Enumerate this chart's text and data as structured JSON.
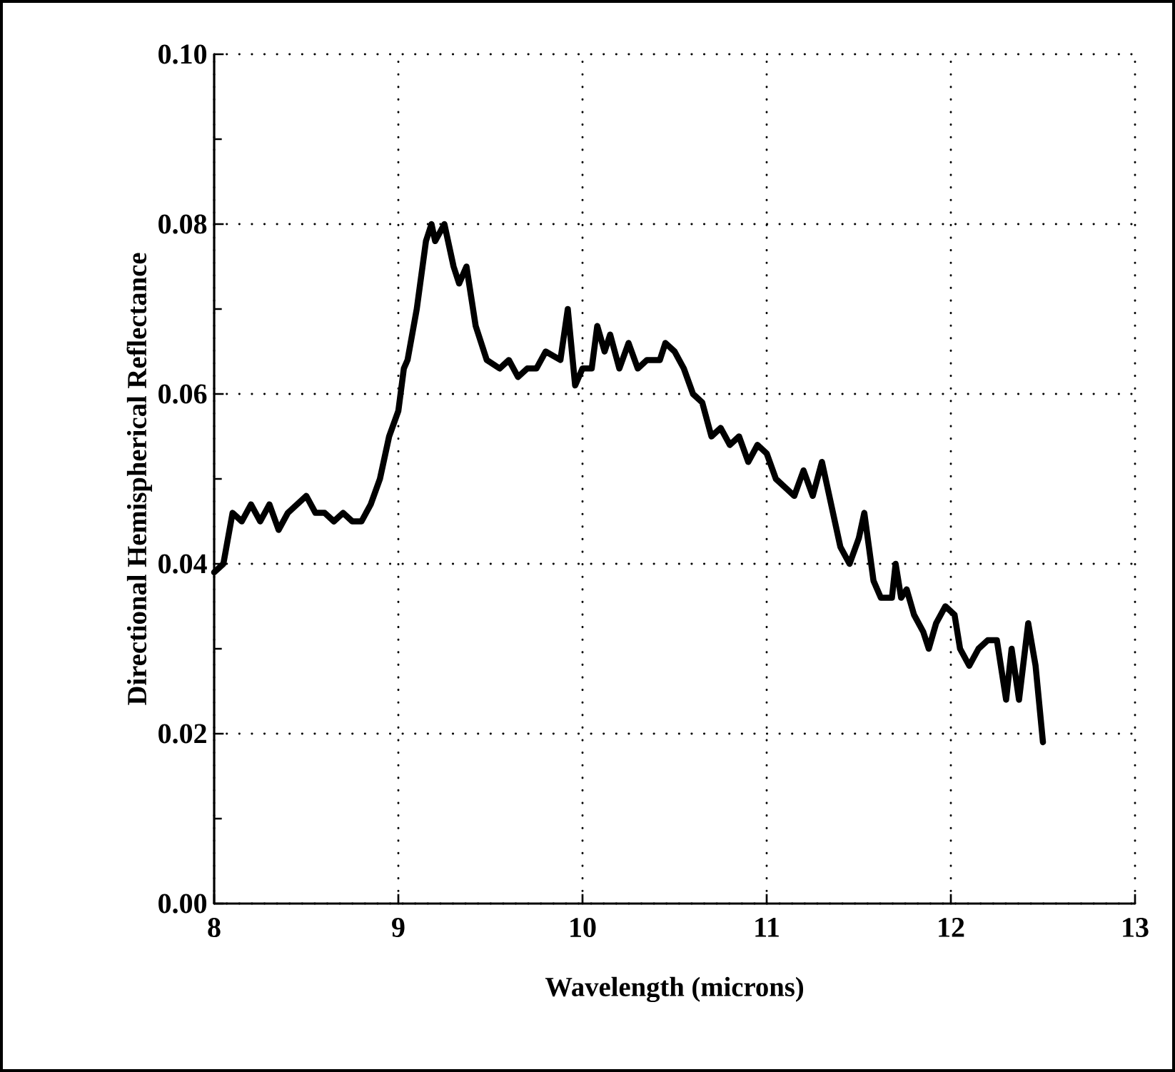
{
  "chart_data": {
    "type": "line",
    "xlabel": "Wavelength (microns)",
    "ylabel": "Directional Hemispherical Reflectance",
    "xlim": [
      8,
      13
    ],
    "xticks": [
      8,
      9,
      10,
      11,
      12,
      13
    ],
    "ylim": [
      0,
      0.1
    ],
    "yticks": [
      {
        "value": 0,
        "label": "0.00"
      },
      {
        "value": 0.02,
        "label": "0.02"
      },
      {
        "value": 0.04,
        "label": "0.04"
      },
      {
        "value": 0.06,
        "label": "0.06"
      },
      {
        "value": 0.08,
        "label": "0.08"
      },
      {
        "value": 0.1,
        "label": "0.10"
      }
    ],
    "grid": true,
    "marker": "none",
    "line_style": "solid",
    "series": [
      {
        "color": "#000000",
        "x": [
          8.0,
          8.05,
          8.1,
          8.15,
          8.2,
          8.25,
          8.3,
          8.35,
          8.4,
          8.5,
          8.55,
          8.6,
          8.65,
          8.7,
          8.75,
          8.8,
          8.85,
          8.9,
          8.95,
          9.0,
          9.03,
          9.05,
          9.1,
          9.15,
          9.18,
          9.2,
          9.25,
          9.3,
          9.33,
          9.37,
          9.42,
          9.48,
          9.55,
          9.6,
          9.65,
          9.7,
          9.75,
          9.8,
          9.88,
          9.92,
          9.96,
          10.0,
          10.05,
          10.08,
          10.12,
          10.15,
          10.2,
          10.25,
          10.3,
          10.35,
          10.42,
          10.45,
          10.5,
          10.55,
          10.6,
          10.65,
          10.7,
          10.75,
          10.8,
          10.85,
          10.9,
          10.95,
          11.0,
          11.05,
          11.1,
          11.15,
          11.2,
          11.25,
          11.3,
          11.35,
          11.4,
          11.45,
          11.5,
          11.53,
          11.58,
          11.62,
          11.68,
          11.7,
          11.73,
          11.76,
          11.8,
          11.85,
          11.88,
          11.92,
          11.97,
          12.02,
          12.05,
          12.1,
          12.15,
          12.2,
          12.25,
          12.3,
          12.33,
          12.37,
          12.42,
          12.46,
          12.5
        ],
        "values": [
          0.039,
          0.04,
          0.046,
          0.045,
          0.047,
          0.045,
          0.047,
          0.044,
          0.046,
          0.048,
          0.046,
          0.046,
          0.045,
          0.046,
          0.045,
          0.045,
          0.047,
          0.05,
          0.055,
          0.058,
          0.063,
          0.064,
          0.07,
          0.078,
          0.08,
          0.078,
          0.08,
          0.075,
          0.073,
          0.075,
          0.068,
          0.064,
          0.063,
          0.064,
          0.062,
          0.063,
          0.063,
          0.065,
          0.064,
          0.07,
          0.061,
          0.063,
          0.063,
          0.068,
          0.065,
          0.067,
          0.063,
          0.066,
          0.063,
          0.064,
          0.064,
          0.066,
          0.065,
          0.063,
          0.06,
          0.059,
          0.055,
          0.056,
          0.054,
          0.055,
          0.052,
          0.054,
          0.053,
          0.05,
          0.049,
          0.048,
          0.051,
          0.048,
          0.052,
          0.047,
          0.042,
          0.04,
          0.043,
          0.046,
          0.038,
          0.036,
          0.036,
          0.04,
          0.036,
          0.037,
          0.034,
          0.032,
          0.03,
          0.033,
          0.035,
          0.034,
          0.03,
          0.028,
          0.03,
          0.031,
          0.031,
          0.024,
          0.03,
          0.024,
          0.033,
          0.028,
          0.019
        ]
      }
    ]
  }
}
